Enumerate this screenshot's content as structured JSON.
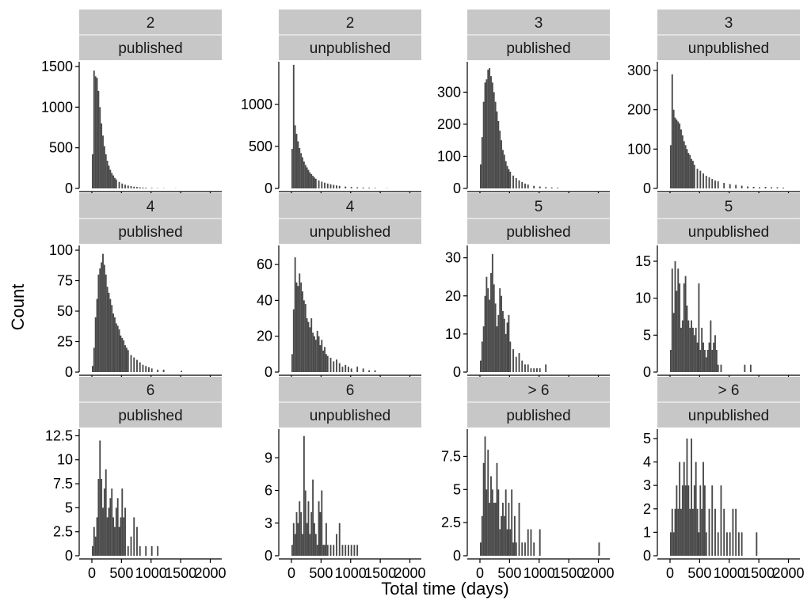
{
  "chart_data": {
    "type": "bar",
    "layout": "facet-grid",
    "xlabel": "Total time (days)",
    "ylabel": "Count",
    "x_ticks": [
      0,
      500,
      1000,
      1500,
      2000
    ],
    "x_tick_labels": [
      "0",
      "500",
      "1000",
      "1500",
      "2000"
    ],
    "xlim": [
      -80,
      2060
    ],
    "bin_width": 25,
    "colors": {
      "bar": "#494949",
      "strip": "#c7c7c7"
    },
    "facets": [
      {
        "row_label": "2",
        "col_label": "published",
        "yticks": [
          0,
          500,
          1000,
          1500
        ],
        "ylim": [
          0,
          1500
        ],
        "x": [
          0,
          25,
          50,
          75,
          100,
          125,
          150,
          175,
          200,
          225,
          250,
          275,
          300,
          325,
          350,
          375,
          400,
          450,
          500,
          550,
          600,
          650,
          700,
          750,
          800,
          850,
          900,
          1000,
          1100,
          1200,
          1400
        ],
        "values": [
          420,
          1450,
          1380,
          1360,
          1200,
          1000,
          800,
          650,
          520,
          420,
          340,
          280,
          230,
          190,
          160,
          130,
          110,
          80,
          60,
          45,
          35,
          28,
          22,
          18,
          14,
          11,
          9,
          6,
          4,
          3,
          2
        ]
      },
      {
        "row_label": "2",
        "col_label": "unpublished",
        "yticks": [
          0,
          500,
          1000
        ],
        "ylim": [
          0,
          1450
        ],
        "x": [
          0,
          25,
          50,
          75,
          100,
          125,
          150,
          175,
          200,
          225,
          250,
          275,
          300,
          325,
          350,
          375,
          400,
          450,
          500,
          550,
          600,
          650,
          700,
          750,
          800,
          900,
          1000,
          1100,
          1200,
          1300,
          1400,
          1600
        ],
        "values": [
          470,
          1470,
          750,
          650,
          560,
          480,
          420,
          370,
          320,
          280,
          250,
          220,
          190,
          170,
          150,
          130,
          115,
          95,
          80,
          68,
          58,
          50,
          42,
          36,
          30,
          22,
          17,
          13,
          10,
          8,
          6,
          3
        ]
      },
      {
        "row_label": "3",
        "col_label": "published",
        "yticks": [
          0,
          100,
          200,
          300
        ],
        "ylim": [
          0,
          380
        ],
        "x": [
          0,
          25,
          50,
          75,
          100,
          125,
          150,
          175,
          200,
          225,
          250,
          275,
          300,
          325,
          350,
          375,
          400,
          425,
          450,
          475,
          500,
          550,
          600,
          650,
          700,
          750,
          800,
          900,
          1000,
          1100,
          1200,
          1300
        ],
        "values": [
          75,
          160,
          270,
          330,
          340,
          370,
          375,
          350,
          330,
          300,
          270,
          240,
          210,
          180,
          150,
          120,
          105,
          85,
          70,
          60,
          52,
          40,
          32,
          25,
          20,
          15,
          12,
          8,
          6,
          4,
          3,
          2
        ]
      },
      {
        "row_label": "3",
        "col_label": "unpublished",
        "yticks": [
          0,
          100,
          200,
          300
        ],
        "ylim": [
          0,
          310
        ],
        "x": [
          0,
          25,
          50,
          75,
          100,
          125,
          150,
          175,
          200,
          225,
          250,
          275,
          300,
          325,
          350,
          375,
          400,
          450,
          500,
          550,
          600,
          650,
          700,
          750,
          800,
          900,
          1000,
          1100,
          1200,
          1300,
          1400,
          1500,
          1600,
          1700,
          1800,
          1900
        ],
        "values": [
          110,
          290,
          200,
          180,
          175,
          170,
          165,
          150,
          135,
          120,
          110,
          100,
          90,
          85,
          75,
          70,
          60,
          50,
          45,
          38,
          32,
          28,
          24,
          20,
          18,
          14,
          11,
          9,
          7,
          5,
          4,
          3,
          4,
          3,
          3,
          2
        ]
      },
      {
        "row_label": "4",
        "col_label": "published",
        "yticks": [
          0,
          25,
          50,
          75,
          100
        ],
        "ylim": [
          0,
          100
        ],
        "x": [
          0,
          25,
          50,
          75,
          100,
          125,
          150,
          175,
          200,
          225,
          250,
          275,
          300,
          325,
          350,
          375,
          400,
          425,
          450,
          475,
          500,
          525,
          550,
          575,
          600,
          650,
          700,
          750,
          800,
          850,
          900,
          950,
          1000,
          1100,
          1200,
          1500
        ],
        "values": [
          5,
          20,
          45,
          60,
          80,
          85,
          90,
          97,
          88,
          80,
          70,
          65,
          60,
          55,
          48,
          45,
          40,
          38,
          35,
          30,
          28,
          26,
          22,
          20,
          18,
          14,
          12,
          10,
          8,
          6,
          5,
          4,
          3,
          2,
          2,
          1
        ]
      },
      {
        "row_label": "4",
        "col_label": "unpublished",
        "yticks": [
          0,
          20,
          40,
          60
        ],
        "ylim": [
          0,
          68
        ],
        "x": [
          0,
          25,
          50,
          75,
          100,
          125,
          150,
          175,
          200,
          225,
          250,
          275,
          300,
          325,
          350,
          375,
          400,
          425,
          450,
          475,
          500,
          525,
          550,
          575,
          600,
          650,
          700,
          750,
          800,
          850,
          900,
          950,
          1000,
          1100,
          1200,
          1300,
          1400
        ],
        "values": [
          10,
          35,
          64,
          50,
          48,
          55,
          50,
          45,
          40,
          38,
          30,
          28,
          25,
          30,
          22,
          20,
          18,
          23,
          20,
          15,
          18,
          12,
          14,
          10,
          9,
          8,
          6,
          7,
          5,
          3,
          4,
          3,
          2,
          3,
          2,
          1,
          1
        ]
      },
      {
        "row_label": "5",
        "col_label": "published",
        "yticks": [
          0,
          10,
          20,
          30
        ],
        "ylim": [
          0,
          32
        ],
        "x": [
          0,
          25,
          50,
          75,
          100,
          125,
          150,
          175,
          200,
          225,
          250,
          275,
          300,
          325,
          350,
          375,
          400,
          425,
          450,
          475,
          500,
          550,
          600,
          650,
          700,
          750,
          800,
          850,
          900,
          950,
          1000,
          1100
        ],
        "values": [
          3,
          8,
          12,
          20,
          25,
          22,
          19,
          26,
          31,
          23,
          18,
          12,
          15,
          22,
          20,
          16,
          14,
          10,
          13,
          15,
          8,
          6,
          4,
          5,
          3,
          2,
          2,
          1,
          1,
          1,
          1,
          2
        ]
      },
      {
        "row_label": "5",
        "col_label": "unpublished",
        "yticks": [
          0,
          5,
          10,
          15
        ],
        "ylim": [
          0,
          16.5
        ],
        "x": [
          0,
          25,
          50,
          75,
          100,
          125,
          150,
          175,
          200,
          225,
          250,
          275,
          300,
          325,
          350,
          375,
          400,
          425,
          450,
          475,
          500,
          525,
          550,
          575,
          600,
          625,
          650,
          675,
          700,
          725,
          750,
          775,
          800,
          850,
          1250,
          1350
        ],
        "values": [
          3,
          14,
          8,
          15,
          11,
          14,
          12,
          6,
          7,
          12,
          13,
          9,
          7,
          6,
          7,
          6,
          5,
          6,
          4,
          12,
          3,
          6,
          4,
          3,
          2,
          3,
          4,
          7,
          3,
          4,
          5,
          3,
          1,
          1,
          1,
          1
        ]
      },
      {
        "row_label": "6",
        "col_label": "published",
        "yticks": [
          0,
          2.5,
          5,
          7.5,
          10,
          12.5
        ],
        "ylim": [
          0,
          12.7
        ],
        "x": [
          0,
          25,
          50,
          75,
          100,
          125,
          150,
          175,
          200,
          225,
          250,
          275,
          300,
          325,
          350,
          375,
          400,
          425,
          450,
          475,
          500,
          525,
          550,
          600,
          650,
          700,
          750,
          800,
          900,
          1000,
          1100
        ],
        "values": [
          1,
          3,
          2,
          4,
          8,
          12,
          8,
          5,
          7,
          9,
          4,
          5,
          6,
          7,
          4,
          3,
          5,
          6,
          3,
          4,
          7,
          4,
          5,
          1,
          2,
          4,
          3,
          1,
          1,
          1,
          1
        ]
      },
      {
        "row_label": "6",
        "col_label": "unpublished",
        "yticks": [
          0,
          3,
          6,
          9
        ],
        "ylim": [
          0,
          11.2
        ],
        "x": [
          0,
          25,
          50,
          75,
          100,
          125,
          150,
          175,
          200,
          225,
          250,
          275,
          300,
          325,
          350,
          375,
          400,
          425,
          450,
          475,
          500,
          525,
          550,
          575,
          600,
          650,
          700,
          750,
          800,
          850,
          900,
          950,
          1000,
          1050,
          1100
        ],
        "values": [
          1,
          3,
          2,
          4,
          3,
          5,
          4,
          2,
          11,
          6,
          3,
          5,
          2,
          4,
          7,
          3,
          2,
          1,
          5,
          4,
          6,
          1,
          1,
          3,
          1,
          1,
          1,
          2,
          3,
          1,
          1,
          1,
          1,
          1,
          1
        ]
      },
      {
        "row_label": "> 6",
        "col_label": "published",
        "yticks": [
          0,
          2.5,
          5,
          7.5
        ],
        "ylim": [
          0,
          9.2
        ],
        "x": [
          0,
          25,
          50,
          75,
          100,
          125,
          150,
          175,
          200,
          225,
          250,
          275,
          300,
          325,
          350,
          375,
          400,
          425,
          450,
          475,
          500,
          525,
          550,
          575,
          600,
          650,
          700,
          750,
          800,
          850,
          900,
          1000,
          2000
        ],
        "values": [
          1,
          3,
          7,
          9,
          5,
          8,
          4,
          6,
          5,
          4,
          4,
          7,
          5,
          2,
          3,
          4,
          3,
          5,
          2,
          4,
          2,
          5,
          1,
          3,
          1,
          4,
          1,
          1,
          2,
          2,
          1,
          2,
          1
        ]
      },
      {
        "row_label": "> 6",
        "col_label": "unpublished",
        "yticks": [
          0,
          1,
          2,
          3,
          4,
          5
        ],
        "ylim": [
          0,
          5.2
        ],
        "x": [
          0,
          25,
          50,
          75,
          100,
          125,
          150,
          175,
          200,
          225,
          250,
          275,
          300,
          325,
          350,
          375,
          400,
          425,
          450,
          475,
          500,
          525,
          550,
          575,
          600,
          650,
          700,
          750,
          800,
          850,
          900,
          950,
          1000,
          1050,
          1100,
          1150,
          1200,
          1450
        ],
        "values": [
          1,
          2,
          1,
          2,
          3,
          2,
          4,
          2,
          3,
          4,
          3,
          5,
          3,
          2,
          5,
          2,
          3,
          4,
          2,
          1,
          3,
          2,
          4,
          3,
          1,
          2,
          3,
          2,
          1,
          3,
          2,
          1,
          1,
          2,
          2,
          1,
          1,
          1
        ]
      }
    ]
  }
}
